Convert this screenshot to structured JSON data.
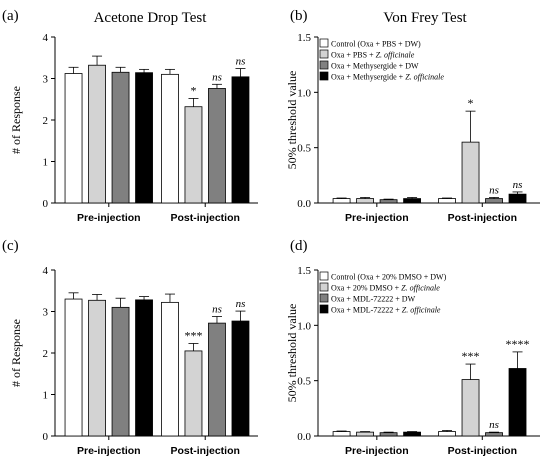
{
  "panels": [
    {
      "label": "(a)",
      "title": "Acetone Drop Test",
      "ylabel": "# of Response",
      "ylim": [
        0,
        4
      ],
      "yticks": [
        "0",
        "1",
        "2",
        "3",
        "4"
      ],
      "legend": null
    },
    {
      "label": "(b)",
      "title": "Von Frey Test",
      "ylabel": "50% threshold value",
      "ylim": [
        0,
        1.5
      ],
      "yticks": [
        "0.0",
        "0.5",
        "1.0",
        "1.5"
      ],
      "legend": [
        {
          "text": "Control (Oxa + PBS + DW)",
          "italic": ""
        },
        {
          "text": "Oxa + PBS + ",
          "italic": "Z. officinale"
        },
        {
          "text": "Oxa + Methysergide + DW",
          "italic": ""
        },
        {
          "text": "Oxa + Methysergide + ",
          "italic": "Z. officinale"
        }
      ]
    },
    {
      "label": "(c)",
      "title": "",
      "ylabel": "# of Response",
      "ylim": [
        0,
        4
      ],
      "yticks": [
        "0",
        "1",
        "2",
        "3",
        "4"
      ],
      "legend": null
    },
    {
      "label": "(d)",
      "title": "",
      "ylabel": "50% threshold value",
      "ylim": [
        0,
        1.5
      ],
      "yticks": [
        "0.0",
        "0.5",
        "1.0",
        "1.5"
      ],
      "legend": [
        {
          "text": "Control (Oxa + 20% DMSO + DW)",
          "italic": ""
        },
        {
          "text": "Oxa + 20% DMSO + ",
          "italic": "Z. officinale"
        },
        {
          "text": "Oxa + MDL-72222 + DW",
          "italic": ""
        },
        {
          "text": "Oxa + MDL-72222 + ",
          "italic": "Z. officinale"
        }
      ]
    }
  ],
  "colors": [
    "#ffffff",
    "#d3d3d3",
    "#808080",
    "#000000"
  ],
  "chart_data": [
    {
      "type": "bar",
      "categories": [
        "Pre-injection",
        "Post-injection"
      ],
      "series": [
        {
          "values": [
            3.12,
            3.1
          ],
          "errors": [
            0.15,
            0.12
          ],
          "sig": [
            "",
            ""
          ]
        },
        {
          "values": [
            3.32,
            2.32
          ],
          "errors": [
            0.22,
            0.2
          ],
          "sig": [
            "",
            "*"
          ]
        },
        {
          "values": [
            3.15,
            2.76
          ],
          "errors": [
            0.12,
            0.1
          ],
          "sig": [
            "",
            "ns"
          ]
        },
        {
          "values": [
            3.14,
            3.04
          ],
          "errors": [
            0.08,
            0.2
          ],
          "sig": [
            "",
            "ns"
          ]
        }
      ]
    },
    {
      "type": "bar",
      "categories": [
        "Pre-injection",
        "Post-injection"
      ],
      "series": [
        {
          "values": [
            0.04,
            0.04
          ],
          "errors": [
            0.005,
            0.005
          ],
          "sig": [
            "",
            ""
          ]
        },
        {
          "values": [
            0.04,
            0.55
          ],
          "errors": [
            0.01,
            0.28
          ],
          "sig": [
            "",
            "*"
          ]
        },
        {
          "values": [
            0.03,
            0.04
          ],
          "errors": [
            0.005,
            0.01
          ],
          "sig": [
            "",
            "ns"
          ]
        },
        {
          "values": [
            0.04,
            0.08
          ],
          "errors": [
            0.01,
            0.02
          ],
          "sig": [
            "",
            "ns"
          ]
        }
      ]
    },
    {
      "type": "bar",
      "categories": [
        "Pre-injection",
        "Post-injection"
      ],
      "series": [
        {
          "values": [
            3.3,
            3.22
          ],
          "errors": [
            0.15,
            0.2
          ],
          "sig": [
            "",
            ""
          ]
        },
        {
          "values": [
            3.27,
            2.05
          ],
          "errors": [
            0.14,
            0.18
          ],
          "sig": [
            "",
            "***"
          ]
        },
        {
          "values": [
            3.1,
            2.72
          ],
          "errors": [
            0.22,
            0.16
          ],
          "sig": [
            "",
            "ns"
          ]
        },
        {
          "values": [
            3.28,
            2.77
          ],
          "errors": [
            0.08,
            0.24
          ],
          "sig": [
            "",
            "ns"
          ]
        }
      ]
    },
    {
      "type": "bar",
      "categories": [
        "Pre-injection",
        "Post-injection"
      ],
      "series": [
        {
          "values": [
            0.04,
            0.04
          ],
          "errors": [
            0.005,
            0.01
          ],
          "sig": [
            "",
            ""
          ]
        },
        {
          "values": [
            0.035,
            0.51
          ],
          "errors": [
            0.005,
            0.14
          ],
          "sig": [
            "",
            "***"
          ]
        },
        {
          "values": [
            0.03,
            0.03
          ],
          "errors": [
            0.005,
            0.005
          ],
          "sig": [
            "",
            "ns"
          ]
        },
        {
          "values": [
            0.035,
            0.61
          ],
          "errors": [
            0.005,
            0.15
          ],
          "sig": [
            "",
            "****"
          ]
        }
      ]
    }
  ]
}
